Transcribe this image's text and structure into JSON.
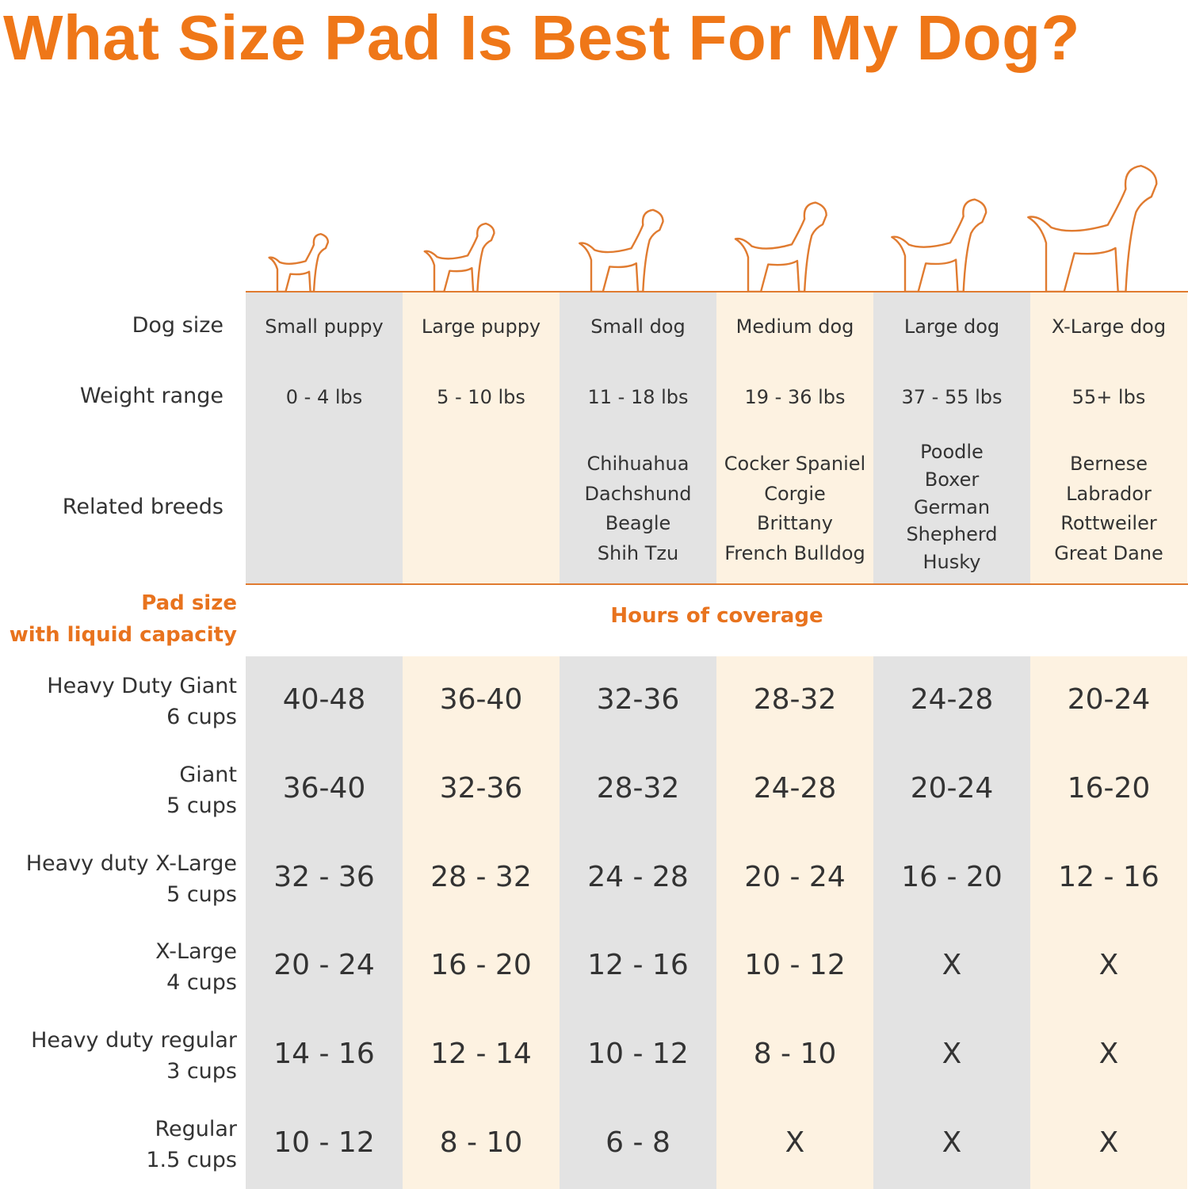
{
  "title": "What Size Pad Is Best For My Dog?",
  "colors": {
    "accent": "#ef7718",
    "gray_column": "#e3e3e3",
    "cream_column": "#fdf2e1",
    "line": "#e07b30"
  },
  "dog_icons": [
    "small-puppy-icon",
    "large-puppy-icon",
    "small-dog-icon",
    "medium-dog-icon",
    "large-dog-icon",
    "xlarge-dog-icon"
  ],
  "row_labels": {
    "dog_size": "Dog size",
    "weight_range": "Weight range",
    "related_breeds": "Related breeds"
  },
  "columns": [
    {
      "dog_size": "Small puppy",
      "weight": "0 - 4 lbs",
      "breeds": []
    },
    {
      "dog_size": "Large puppy",
      "weight": "5 - 10 lbs",
      "breeds": []
    },
    {
      "dog_size": "Small dog",
      "weight": "11 - 18 lbs",
      "breeds": [
        "Chihuahua",
        "Dachshund",
        "Beagle",
        "Shih Tzu"
      ]
    },
    {
      "dog_size": "Medium dog",
      "weight": "19 - 36 lbs",
      "breeds": [
        "Cocker Spaniel",
        "Corgie",
        "Brittany",
        "French Bulldog"
      ]
    },
    {
      "dog_size": "Large dog",
      "weight": "37 - 55 lbs",
      "breeds": [
        "Poodle",
        "Boxer",
        "German Shepherd",
        "Husky"
      ]
    },
    {
      "dog_size": "X-Large dog",
      "weight": "55+ lbs",
      "breeds": [
        "Bernese",
        "Labrador",
        "Rottweiler",
        "Great Dane"
      ]
    }
  ],
  "pad_section": {
    "label_line1": "Pad size",
    "label_line2": "with liquid capacity",
    "coverage_header": "Hours of coverage"
  },
  "pads": [
    {
      "name": "Heavy Duty Giant",
      "capacity": "6 cups",
      "hours": [
        "40-48",
        "36-40",
        "32-36",
        "28-32",
        "24-28",
        "20-24"
      ]
    },
    {
      "name": "Giant",
      "capacity": "5 cups",
      "hours": [
        "36-40",
        "32-36",
        "28-32",
        "24-28",
        "20-24",
        "16-20"
      ]
    },
    {
      "name": "Heavy duty X-Large",
      "capacity": "5 cups",
      "hours": [
        "32 - 36",
        "28 - 32",
        "24 - 28",
        "20 - 24",
        "16 - 20",
        "12 - 16"
      ]
    },
    {
      "name": "X-Large",
      "capacity": "4 cups",
      "hours": [
        "20 - 24",
        "16 - 20",
        "12 - 16",
        "10 - 12",
        "X",
        "X"
      ]
    },
    {
      "name": "Heavy duty regular",
      "capacity": "3 cups",
      "hours": [
        "14 - 16",
        "12 - 14",
        "10 - 12",
        "8 - 10",
        "X",
        "X"
      ]
    },
    {
      "name": "Regular",
      "capacity": "1.5 cups",
      "hours": [
        "10 - 12",
        "8 - 10",
        "6 - 8",
        "X",
        "X",
        "X"
      ]
    }
  ]
}
